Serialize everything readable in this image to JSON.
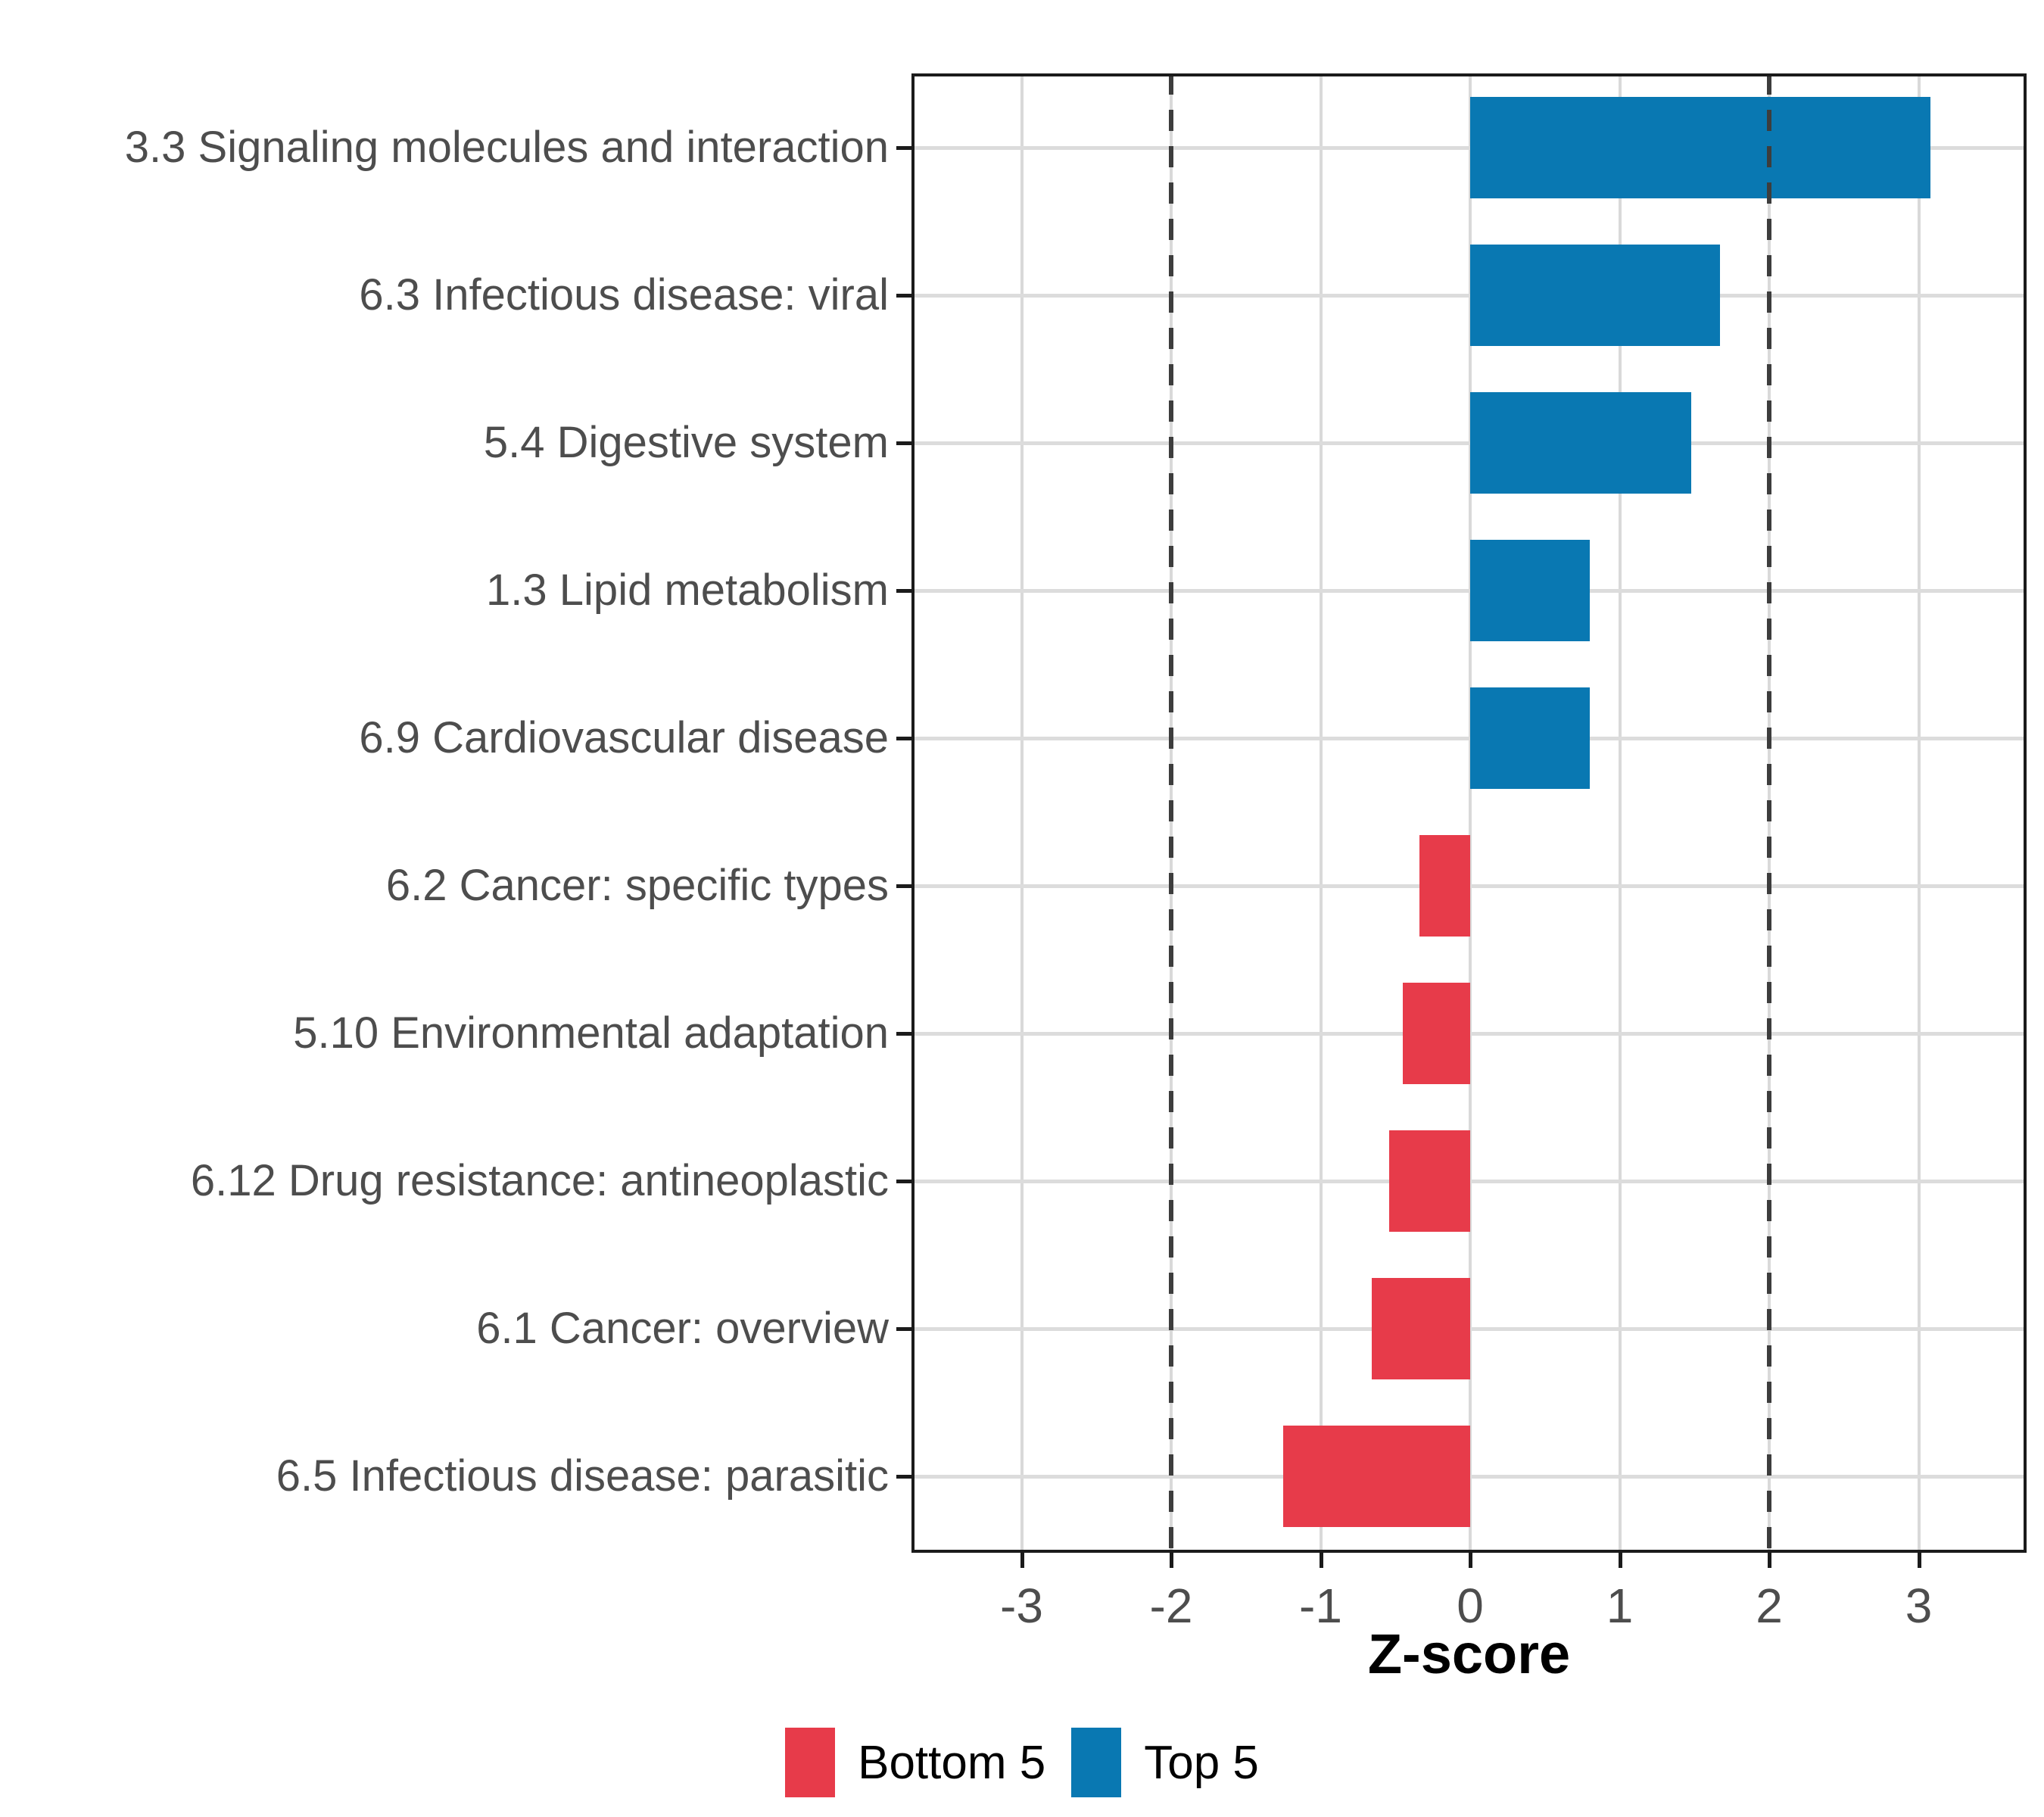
{
  "chart_data": {
    "type": "bar",
    "orientation": "horizontal",
    "title": "",
    "xlabel": "Z-score",
    "ylabel": "",
    "categories": [
      "3.3 Signaling molecules and interaction",
      "6.3 Infectious disease: viral",
      "5.4 Digestive system",
      "1.3 Lipid metabolism",
      "6.9 Cardiovascular disease",
      "6.2 Cancer: specific types",
      "5.10 Environmental adaptation",
      "6.12 Drug resistance: antineoplastic",
      "6.1 Cancer: overview",
      "6.5 Infectious disease: parasitic"
    ],
    "series": [
      {
        "name": "Z-score",
        "values": [
          3.08,
          1.67,
          1.48,
          0.8,
          0.8,
          -0.34,
          -0.45,
          -0.54,
          -0.66,
          -1.25
        ]
      }
    ],
    "groups": [
      "Top 5",
      "Top 5",
      "Top 5",
      "Top 5",
      "Top 5",
      "Bottom 5",
      "Bottom 5",
      "Bottom 5",
      "Bottom 5",
      "Bottom 5"
    ],
    "colors": {
      "Top 5": "#0978b2",
      "Bottom 5": "#e73b4a"
    },
    "x_ticks": [
      -3,
      -2,
      -1,
      0,
      1,
      2,
      3
    ],
    "x_tick_labels": [
      "-3",
      "-2",
      "-1",
      "0",
      "1",
      "2",
      "3"
    ],
    "xlim": [
      -3.72,
      3.71
    ],
    "reference_lines": [
      {
        "x": -2,
        "style": "dashed"
      },
      {
        "x": 2,
        "style": "dashed"
      }
    ],
    "grid": "major vertical at integers, horizontal at category centers",
    "legend_position": "bottom",
    "legend": [
      {
        "label": "Bottom 5",
        "color": "#e73b4a"
      },
      {
        "label": "Top 5",
        "color": "#0978b2"
      }
    ]
  }
}
